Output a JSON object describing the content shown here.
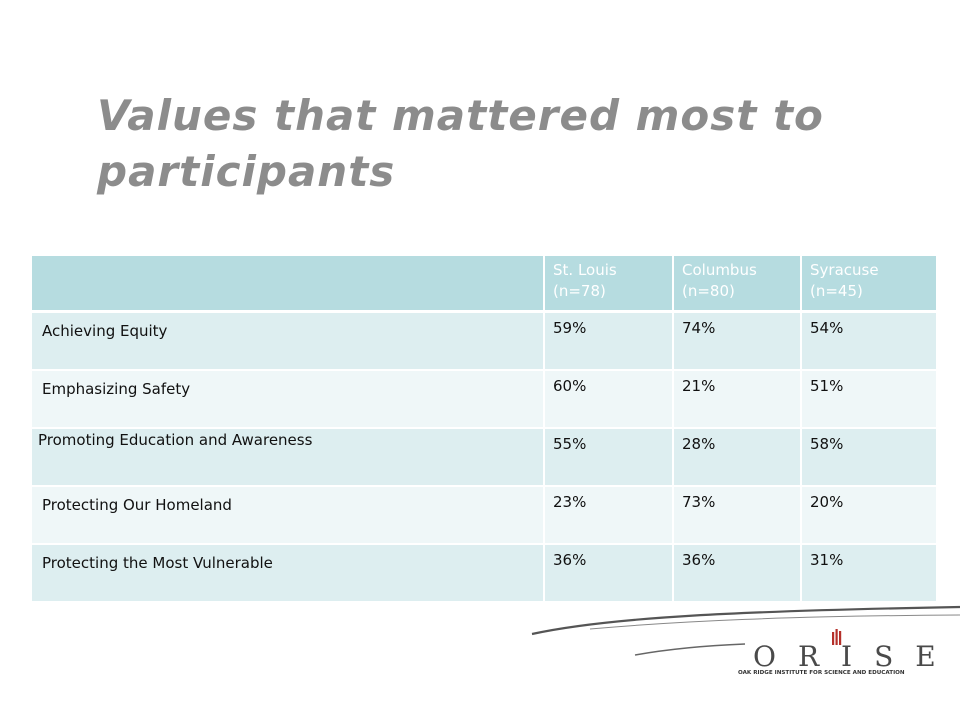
{
  "slide": {
    "title": "Values that mattered most to participants"
  },
  "table": {
    "headers": [
      "",
      "St. Louis (n=78)",
      "Columbus (n=80)",
      "Syracuse (n=45)"
    ],
    "rows": [
      {
        "label": "Achieving Equity",
        "st_louis": "59%",
        "columbus": "74%",
        "syracuse": "54%"
      },
      {
        "label": "Emphasizing Safety",
        "st_louis": "60%",
        "columbus": "21%",
        "syracuse": "51%"
      },
      {
        "label": "Promoting Education and Awareness",
        "st_louis": "55%",
        "columbus": "28%",
        "syracuse": "58%"
      },
      {
        "label": "Protecting Our Homeland",
        "st_louis": "23%",
        "columbus": "73%",
        "syracuse": "20%"
      },
      {
        "label": "Protecting the Most Vulnerable",
        "st_louis": "36%",
        "columbus": "36%",
        "syracuse": "31%"
      }
    ]
  },
  "logo": {
    "wordmark": "ORISE",
    "subtitle": "OAK RIDGE INSTITUTE FOR SCIENCE AND EDUCATION"
  },
  "colors": {
    "header_bg": "#b6dce0",
    "row_odd": "#ddeef0",
    "row_even": "#eff7f8",
    "title": "#8c8c8c",
    "logo_accent": "#b5302a"
  }
}
